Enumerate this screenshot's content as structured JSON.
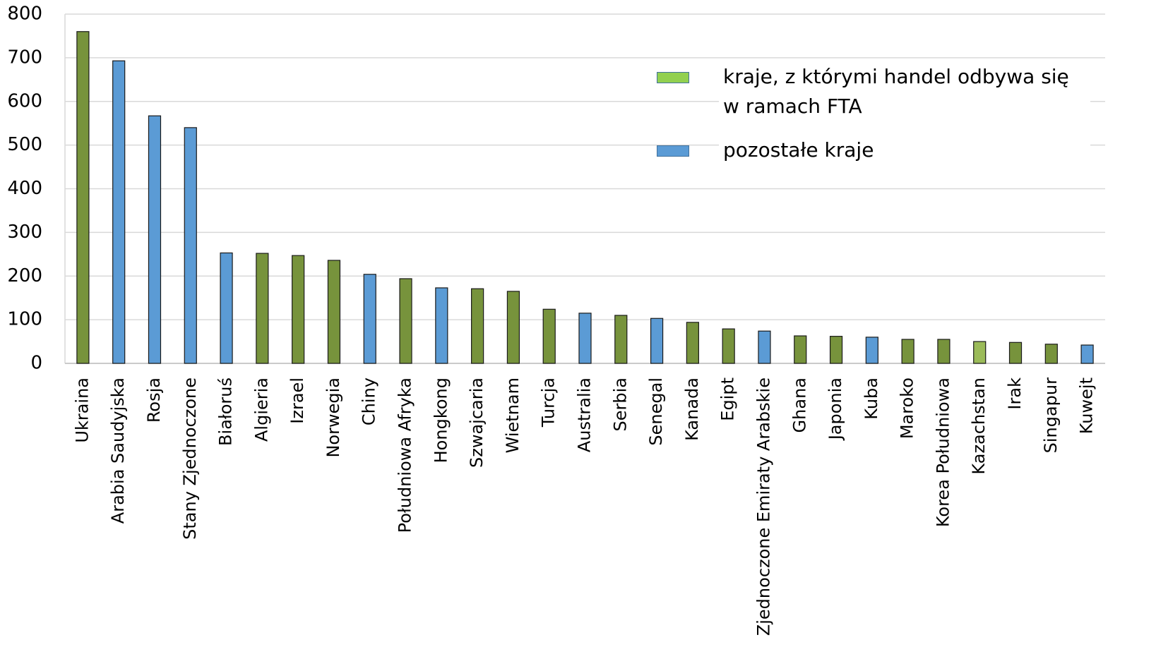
{
  "chart_data": {
    "type": "bar",
    "categories": [
      "Ukraina",
      "Arabia Saudyjska",
      "Rosja",
      "Stany Zjednoczone",
      "Białoruś",
      "Algieria",
      "Izrael",
      "Norwegia",
      "Chiny",
      "Południowa Afryka",
      "Hongkong",
      "Szwajcaria",
      "Wietnam",
      "Turcja",
      "Australia",
      "Serbia",
      "Senegal",
      "Kanada",
      "Egipt",
      "Zjednoczone Emiraty Arabskie",
      "Ghana",
      "Japonia",
      "Kuba",
      "Maroko",
      "Korea Południowa",
      "Kazachstan",
      "Irak",
      "Singapur",
      "Kuwejt"
    ],
    "values": [
      760,
      693,
      567,
      540,
      253,
      252,
      247,
      236,
      204,
      194,
      173,
      171,
      165,
      124,
      115,
      110,
      103,
      94,
      79,
      74,
      63,
      62,
      60,
      55,
      55,
      50,
      48,
      44,
      42
    ],
    "colors": [
      "#77933c",
      "#5b9bd5",
      "#5b9bd5",
      "#5b9bd5",
      "#5b9bd5",
      "#77933c",
      "#77933c",
      "#77933c",
      "#5b9bd5",
      "#77933c",
      "#5b9bd5",
      "#77933c",
      "#77933c",
      "#77933c",
      "#5b9bd5",
      "#77933c",
      "#5b9bd5",
      "#77933c",
      "#77933c",
      "#5b9bd5",
      "#77933c",
      "#77933c",
      "#5b9bd5",
      "#77933c",
      "#77933c",
      "#9bbb59",
      "#77933c",
      "#77933c",
      "#5b9bd5"
    ],
    "legend": [
      {
        "name": "kraje, z którymi handel odbywa się w ramach FTA",
        "color": "#92d050"
      },
      {
        "name": "pozostałe kraje",
        "color": "#5b9bd5"
      }
    ],
    "legend_position": "upper right",
    "ylim": [
      0,
      800
    ],
    "yticks": [
      0,
      100,
      200,
      300,
      400,
      500,
      600,
      700,
      800
    ],
    "grid": true
  }
}
